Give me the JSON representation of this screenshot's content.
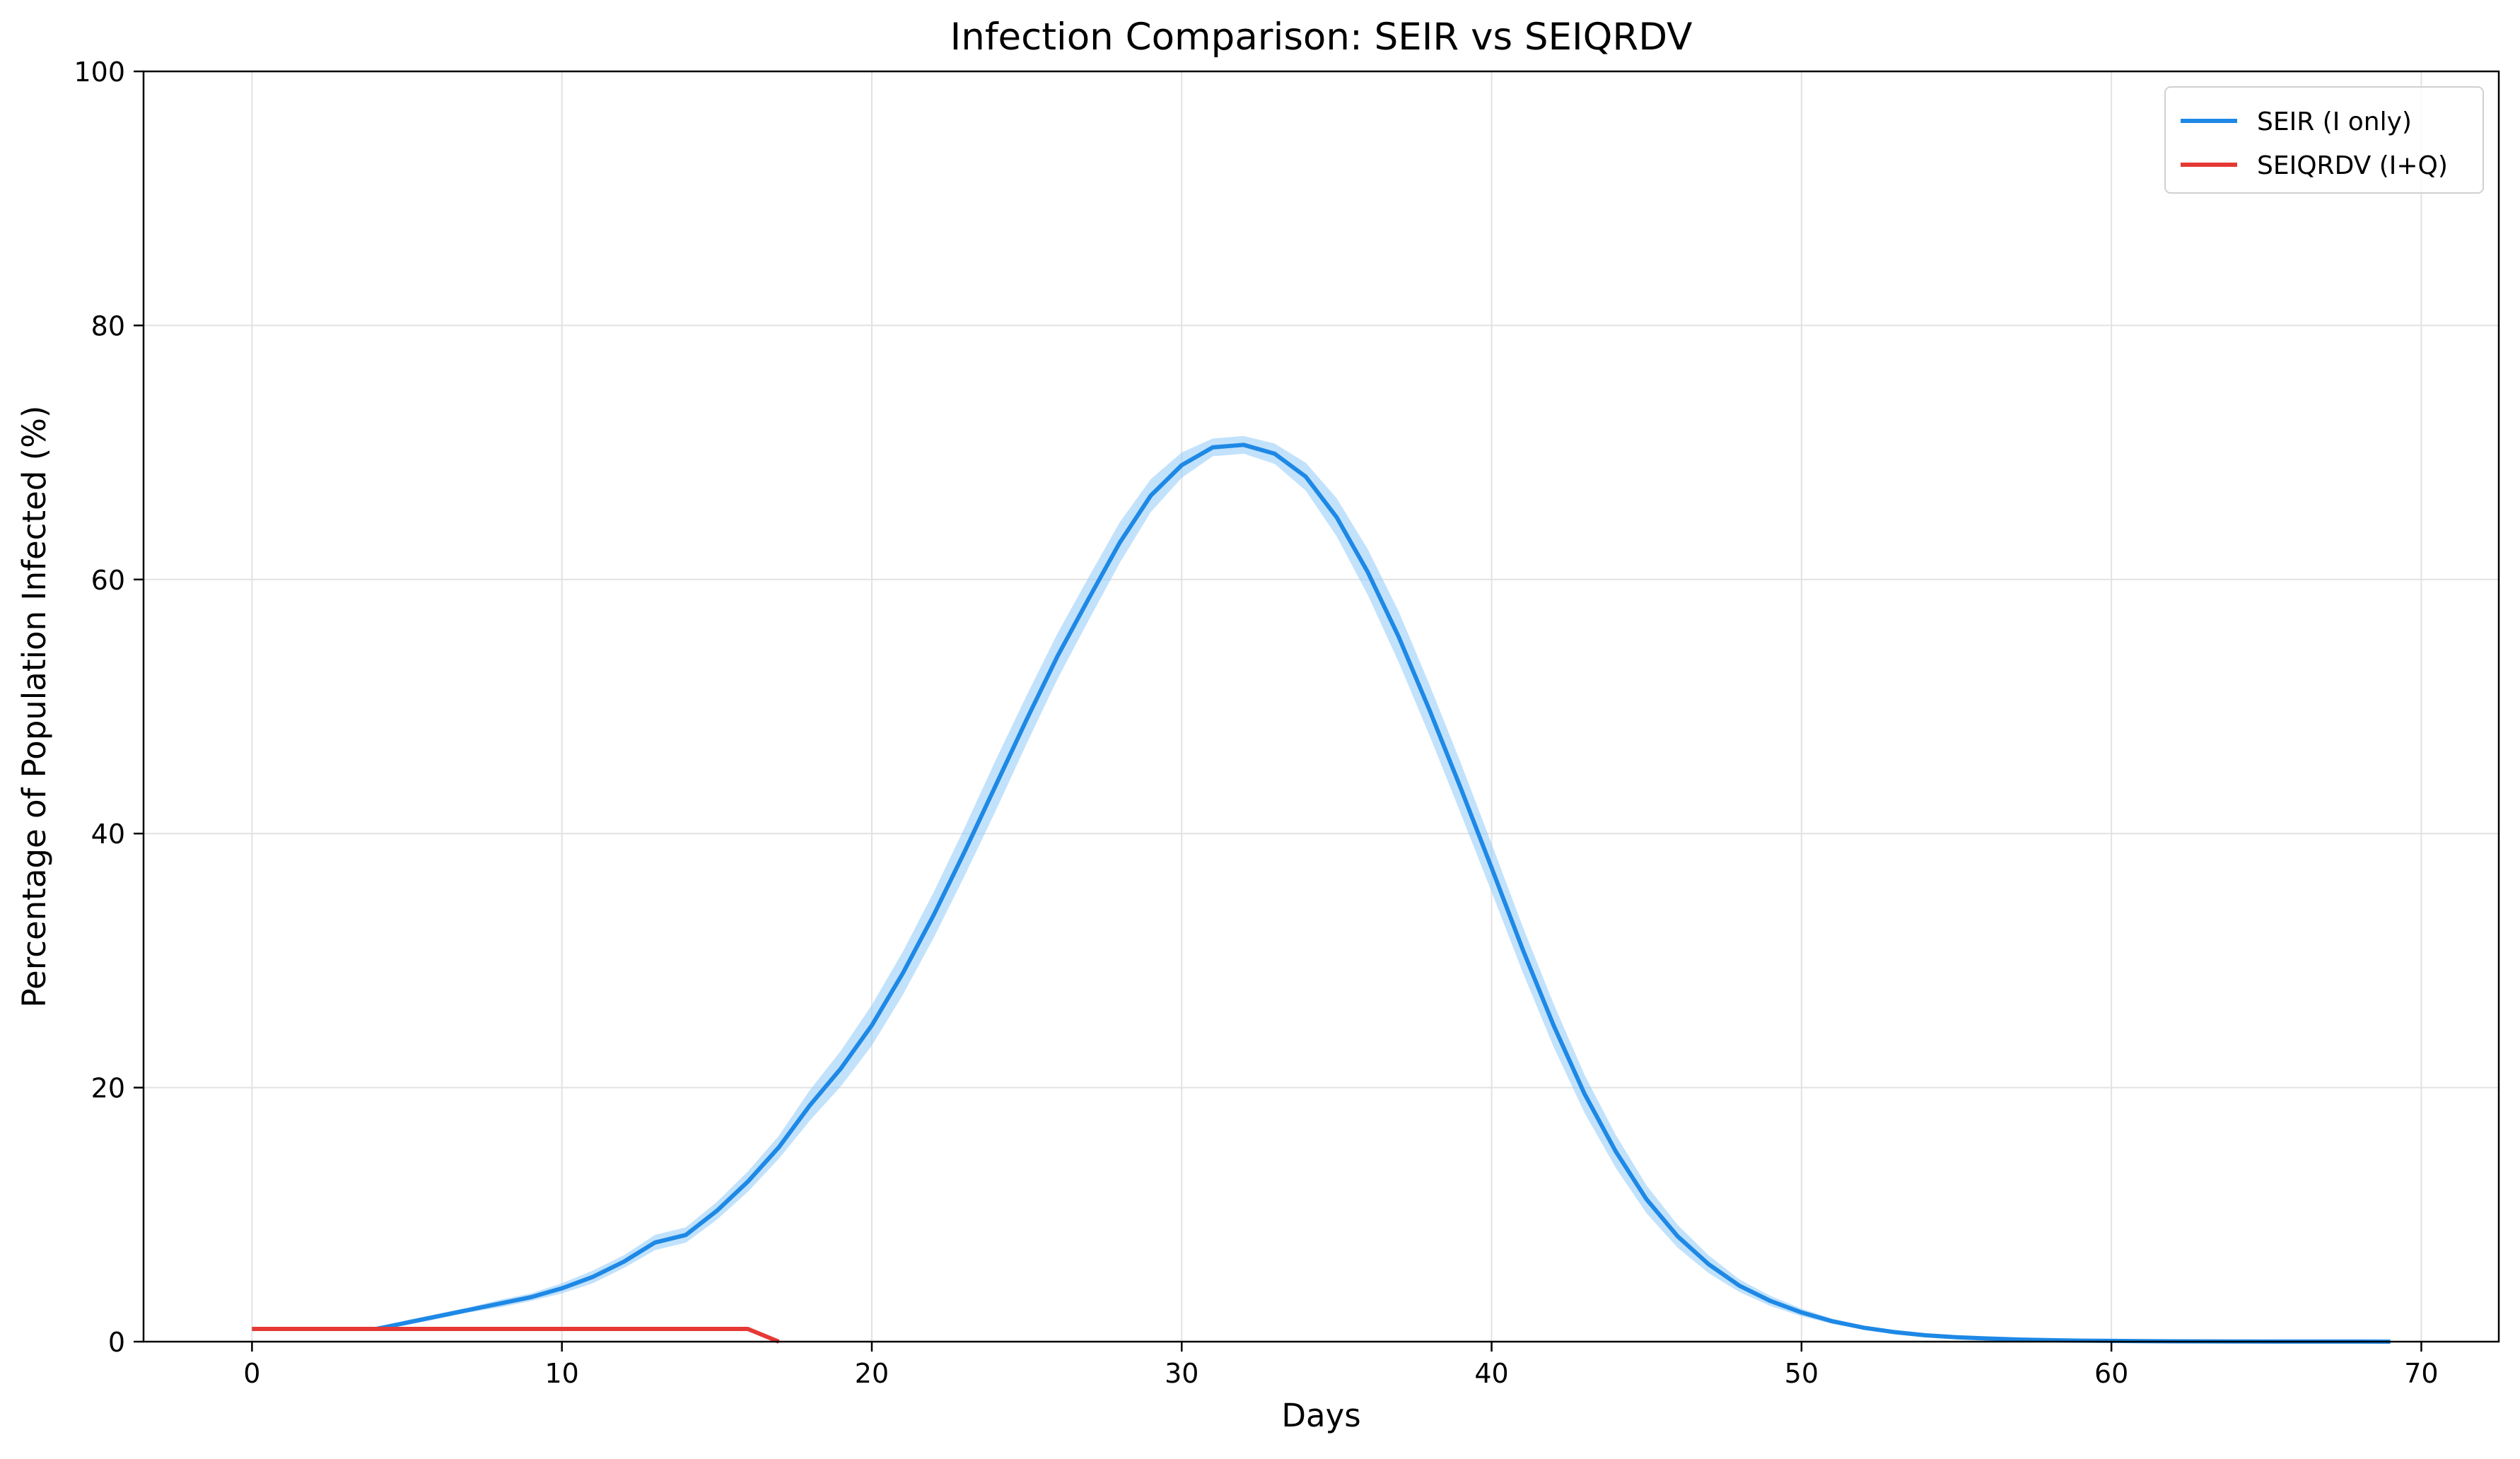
{
  "chart_data": {
    "type": "line",
    "title": "Infection Comparison: SEIR vs SEIQRDV",
    "xlabel": "Days",
    "ylabel": "Percentage of Population Infected (%)",
    "xlim": [
      -3.5,
      72.5
    ],
    "ylim": [
      0,
      100
    ],
    "x_ticks": [
      0,
      10,
      20,
      30,
      40,
      50,
      60,
      70
    ],
    "y_ticks": [
      0,
      20,
      40,
      60,
      80,
      100
    ],
    "grid": true,
    "legend_position": "top-right",
    "series": [
      {
        "name": "SEIR (I only)",
        "color": "#1e88e5",
        "band_color": "#90caf9",
        "x": [
          0,
          1,
          2,
          3,
          4,
          5,
          6,
          7,
          8,
          9,
          10,
          11,
          12,
          13,
          14,
          15,
          16,
          17,
          18,
          19,
          20,
          21,
          22,
          23,
          24,
          25,
          26,
          27,
          28,
          29,
          30,
          31,
          32,
          33,
          34,
          35,
          36,
          37,
          38,
          39,
          40,
          41,
          42,
          43,
          44,
          45,
          46,
          47,
          48,
          49,
          50,
          51,
          52,
          53,
          54,
          55,
          56,
          57,
          58,
          59,
          60,
          61,
          62,
          63,
          64,
          65,
          66,
          67,
          68,
          69
        ],
        "values": [
          1.0,
          1.0,
          1.0,
          1.0,
          1.0,
          1.5,
          2.0,
          2.5,
          3.0,
          3.5,
          4.2,
          5.1,
          6.3,
          7.8,
          8.4,
          10.3,
          12.6,
          15.3,
          18.6,
          21.5,
          24.9,
          29.0,
          33.6,
          38.6,
          43.8,
          49.0,
          54.0,
          58.5,
          62.9,
          66.6,
          69.0,
          70.4,
          70.6,
          69.9,
          68.1,
          64.9,
          60.6,
          55.5,
          49.7,
          43.6,
          37.3,
          30.9,
          24.9,
          19.5,
          15.0,
          11.2,
          8.3,
          6.1,
          4.4,
          3.2,
          2.3,
          1.6,
          1.1,
          0.75,
          0.5,
          0.35,
          0.25,
          0.17,
          0.12,
          0.08,
          0.06,
          0.04,
          0.03,
          0.02,
          0.015,
          0.01,
          0.01,
          0.005,
          0.005,
          0.0
        ],
        "band_halfwidth": [
          0.0,
          0.0,
          0.0,
          0.0,
          0.0,
          0.2,
          0.2,
          0.2,
          0.3,
          0.3,
          0.4,
          0.5,
          0.5,
          0.6,
          0.6,
          0.7,
          0.8,
          0.9,
          1.2,
          1.4,
          1.6,
          1.7,
          1.8,
          1.9,
          2.0,
          1.9,
          1.8,
          1.7,
          1.6,
          1.3,
          1.0,
          0.7,
          0.7,
          0.8,
          1.1,
          1.5,
          1.8,
          2.0,
          2.0,
          2.0,
          1.9,
          1.8,
          1.7,
          1.5,
          1.3,
          1.1,
          0.9,
          0.7,
          0.5,
          0.4,
          0.3,
          0.2,
          0.15,
          0.1,
          0.08,
          0.06,
          0.04,
          0.03,
          0.02,
          0.01,
          0.01,
          0.0,
          0.0,
          0.0,
          0.0,
          0.0,
          0.0,
          0.0,
          0.0,
          0.0
        ]
      },
      {
        "name": "SEIQRDV (I+Q)",
        "color": "#e53935",
        "x": [
          0,
          1,
          2,
          3,
          4,
          5,
          6,
          7,
          8,
          9,
          10,
          11,
          12,
          13,
          14,
          15,
          16,
          17
        ],
        "values": [
          1,
          1,
          1,
          1,
          1,
          1,
          1,
          1,
          1,
          1,
          1,
          1,
          1,
          1,
          1,
          1,
          1,
          0
        ]
      }
    ]
  }
}
